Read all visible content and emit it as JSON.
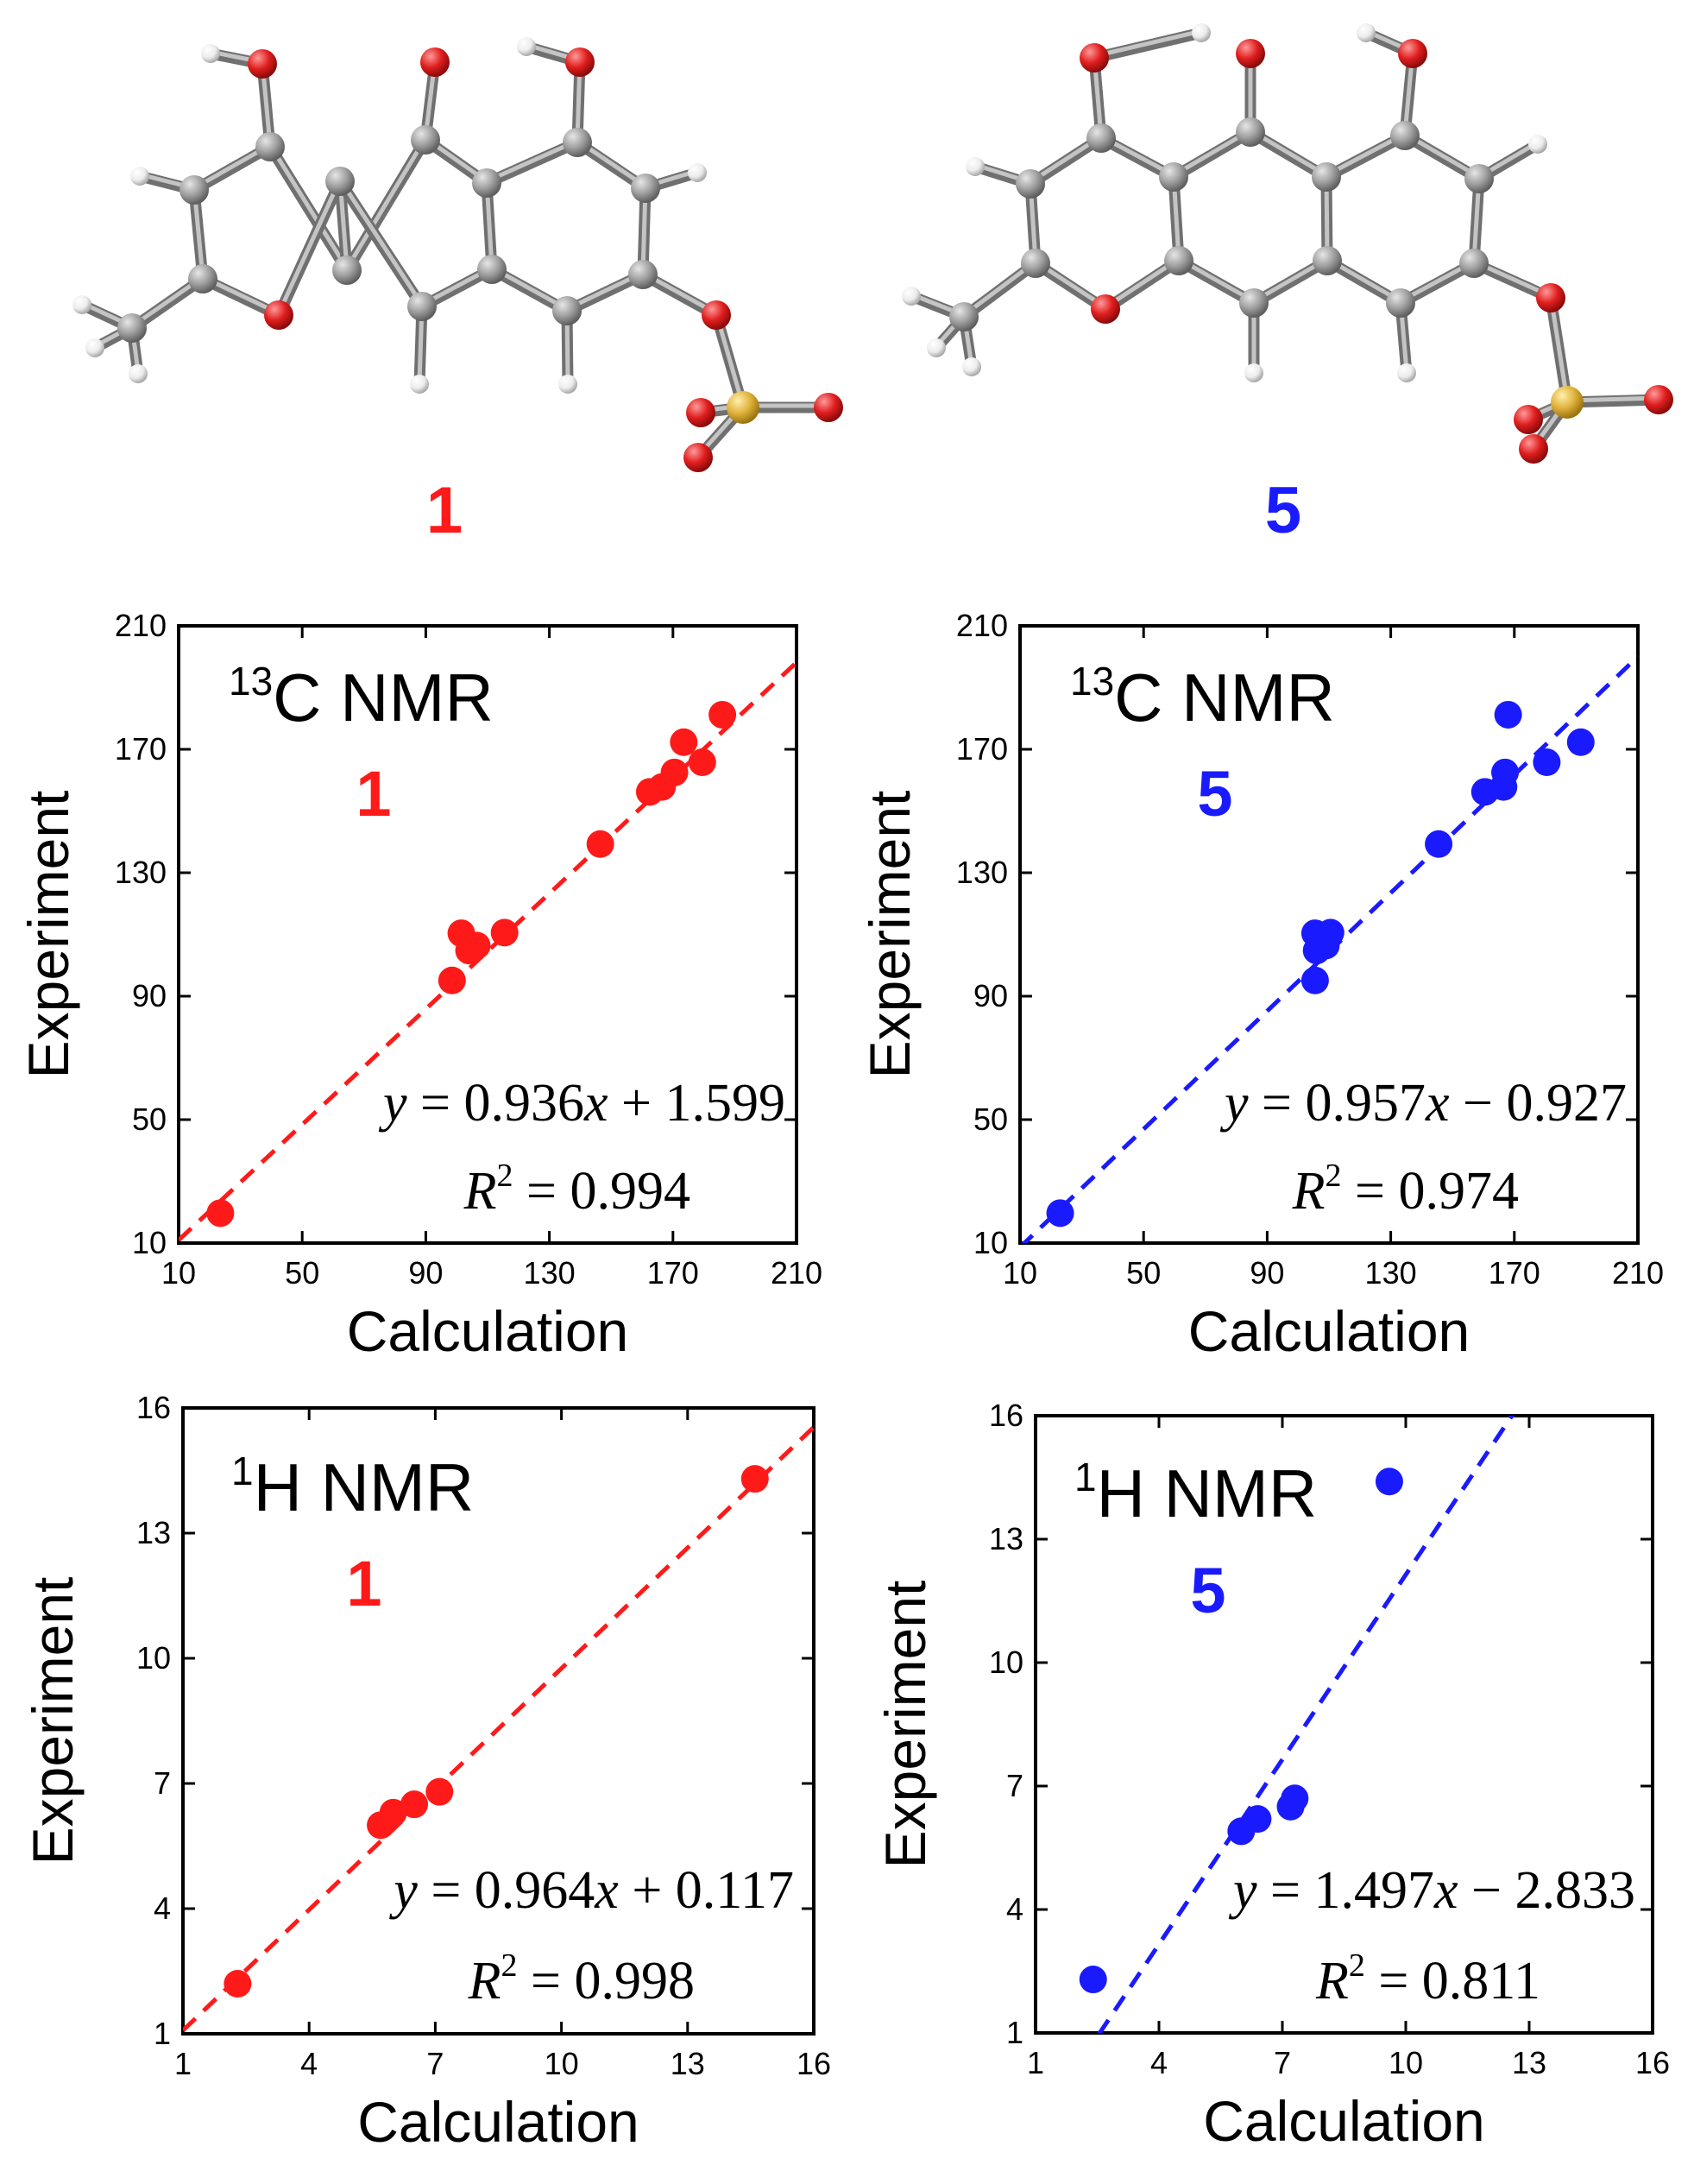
{
  "molecules": [
    {
      "label": "1",
      "color": "#ff1a1a"
    },
    {
      "label": "5",
      "color": "#1a1aff"
    }
  ],
  "atom_colors": {
    "carbon": "#9a9a9a",
    "oxygen": "#e01e1e",
    "hydrogen": "#ededed",
    "sulfur": "#e0b23a"
  },
  "chart_data": [
    {
      "type": "scatter",
      "title_mass": "13",
      "title_nucleus": "C NMR",
      "compound": "1",
      "color": "#ff1a1a",
      "xlabel": "Calculation",
      "ylabel": "Experiment",
      "xlim": [
        10,
        210
      ],
      "ylim": [
        10,
        210
      ],
      "xticks": [
        "10",
        "50",
        "90",
        "130",
        "170",
        "210"
      ],
      "yticks": [
        "10",
        "50",
        "90",
        "130",
        "170",
        "210"
      ],
      "tick_values": [
        10,
        50,
        90,
        130,
        170,
        210
      ],
      "points": [
        [
          23.5,
          19.7
        ],
        [
          98.5,
          95.1
        ],
        [
          101.5,
          110.4
        ],
        [
          104,
          104.8
        ],
        [
          106.5,
          106.4
        ],
        [
          115.5,
          110.6
        ],
        [
          146.5,
          139.3
        ],
        [
          162.5,
          156.2
        ],
        [
          166.5,
          157.8
        ],
        [
          170.5,
          162.5
        ],
        [
          173.5,
          172.3
        ],
        [
          179.5,
          165.8
        ],
        [
          186,
          181.2
        ]
      ],
      "fit": {
        "slope": 0.936,
        "intercept": 1.599
      },
      "equation": {
        "y": "y",
        "eq": "=",
        "coef": "0.936",
        "x": "x",
        "op": "+",
        "const": "1.599"
      },
      "r2": {
        "r": "R",
        "sup": "2",
        "text": " = 0.994"
      }
    },
    {
      "type": "scatter",
      "title_mass": "13",
      "title_nucleus": "C NMR",
      "compound": "5",
      "color": "#1a1aff",
      "xlabel": "Calculation",
      "ylabel": "Experiment",
      "xlim": [
        10,
        210
      ],
      "ylim": [
        10,
        210
      ],
      "xticks": [
        "10",
        "50",
        "90",
        "130",
        "170",
        "210"
      ],
      "yticks": [
        "10",
        "50",
        "90",
        "130",
        "170",
        "210"
      ],
      "tick_values": [
        10,
        50,
        90,
        130,
        170,
        210
      ],
      "points": [
        [
          23,
          19.7
        ],
        [
          105.5,
          95.1
        ],
        [
          105.5,
          110.4
        ],
        [
          106,
          104.8
        ],
        [
          109,
          106.4
        ],
        [
          110.5,
          110.6
        ],
        [
          145.5,
          139.3
        ],
        [
          160.5,
          156.2
        ],
        [
          166.5,
          157.8
        ],
        [
          167,
          162.5
        ],
        [
          168,
          181.2
        ],
        [
          180.5,
          165.8
        ],
        [
          191.5,
          172.3
        ]
      ],
      "fit": {
        "slope": 0.957,
        "intercept": -0.927
      },
      "equation": {
        "y": "y",
        "eq": "=",
        "coef": "0.957",
        "x": "x",
        "op": "−",
        "const": "0.927"
      },
      "r2": {
        "r": "R",
        "sup": "2",
        "text": " = 0.974"
      }
    },
    {
      "type": "scatter",
      "title_mass": "1",
      "title_nucleus": "H NMR",
      "compound": "1",
      "color": "#ff1a1a",
      "xlabel": "Calculation",
      "ylabel": "Experiment",
      "xlim": [
        1,
        16
      ],
      "ylim": [
        1,
        16
      ],
      "xticks": [
        "1",
        "4",
        "7",
        "10",
        "13",
        "16"
      ],
      "yticks": [
        "1",
        "4",
        "7",
        "10",
        "13",
        "16"
      ],
      "tick_values": [
        1,
        4,
        7,
        10,
        13,
        16
      ],
      "points": [
        [
          2.3,
          2.2
        ],
        [
          5.7,
          6.0
        ],
        [
          6.0,
          6.3
        ],
        [
          6.5,
          6.5
        ],
        [
          7.1,
          6.8
        ],
        [
          14.6,
          14.3
        ]
      ],
      "fit": {
        "slope": 0.964,
        "intercept": 0.117
      },
      "equation": {
        "y": "y",
        "eq": "=",
        "coef": "0.964",
        "x": "x",
        "op": "+",
        "const": "0.117"
      },
      "r2": {
        "r": "R",
        "sup": "2",
        "text": " = 0.998"
      }
    },
    {
      "type": "scatter",
      "title_mass": "1",
      "title_nucleus": "H NMR",
      "compound": "5",
      "color": "#1a1aff",
      "xlabel": "Calculation",
      "ylabel": "Experiment",
      "xlim": [
        1,
        16
      ],
      "ylim": [
        1,
        16
      ],
      "xticks": [
        "1",
        "4",
        "7",
        "10",
        "13",
        "16"
      ],
      "yticks": [
        "1",
        "4",
        "7",
        "10",
        "13",
        "16"
      ],
      "tick_values": [
        1,
        4,
        7,
        10,
        13,
        16
      ],
      "points": [
        [
          2.4,
          2.3
        ],
        [
          6.0,
          5.9
        ],
        [
          6.4,
          6.2
        ],
        [
          7.2,
          6.5
        ],
        [
          7.3,
          6.7
        ],
        [
          9.6,
          14.4
        ]
      ],
      "fit": {
        "slope": 1.497,
        "intercept": -2.833
      },
      "equation": {
        "y": "y",
        "eq": "=",
        "coef": "1.497",
        "x": "x",
        "op": "−",
        "const": "2.833"
      },
      "r2": {
        "r": "R",
        "sup": "2",
        "text": " = 0.811"
      }
    }
  ]
}
